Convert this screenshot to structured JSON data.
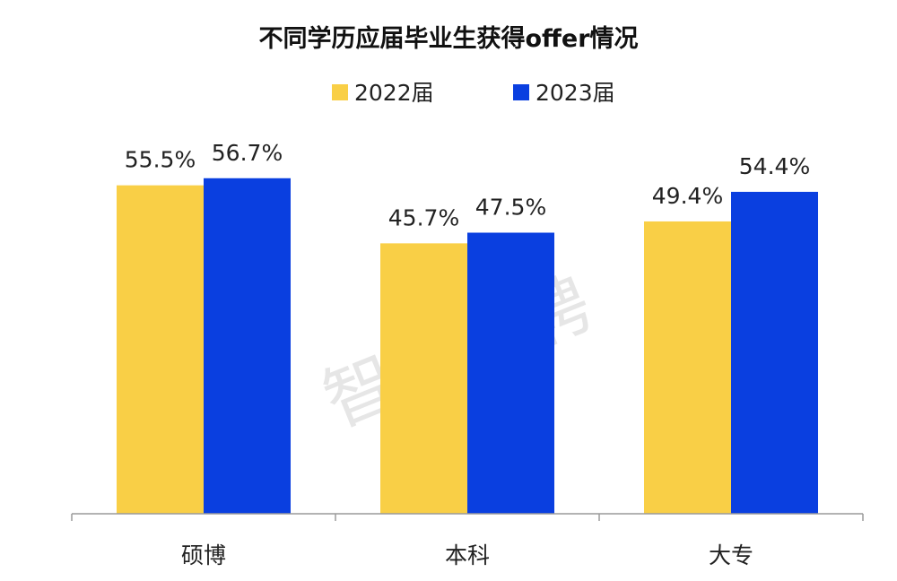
{
  "chart_data": {
    "type": "bar",
    "title": "不同学历应届毕业生获得offer情况",
    "categories": [
      "硕博",
      "本科",
      "大专"
    ],
    "series": [
      {
        "name": "2022届",
        "values": [
          55.5,
          45.7,
          49.4
        ],
        "labels": [
          "55.5%",
          "45.7%",
          "49.4%"
        ],
        "color": "#F9CF46"
      },
      {
        "name": "2023届",
        "values": [
          56.7,
          47.5,
          54.4
        ],
        "labels": [
          "56.7%",
          "47.5%",
          "54.4%"
        ],
        "color": "#0A3FE0"
      }
    ],
    "ylim": [
      0,
      60
    ],
    "grid": false,
    "legend": "top-center",
    "xlabel": "",
    "ylabel": ""
  },
  "watermark": "智联招聘"
}
